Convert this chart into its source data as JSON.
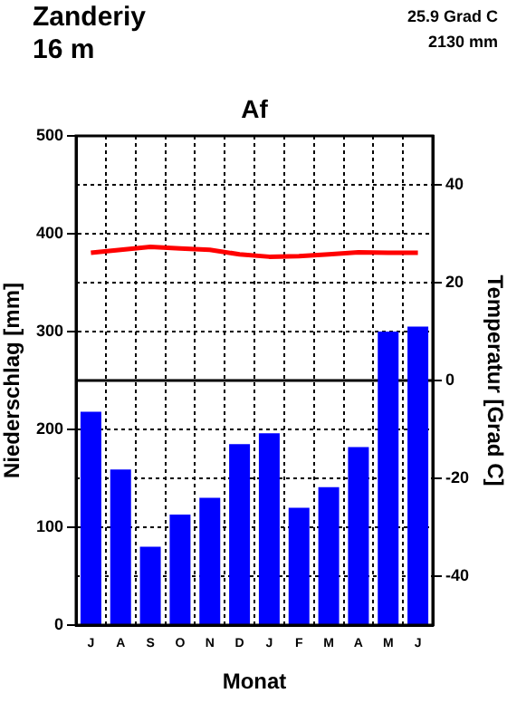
{
  "chart_data": {
    "type": "bar",
    "title": "Af",
    "annotations": [
      "Zanderiy",
      "16 m",
      "25.9 Grad C",
      "2130 mm"
    ],
    "xlabel": "Monat",
    "ylabel": "Niederschlag [mm]",
    "y2label": "Temperatur [Grad C]",
    "categories": [
      "J",
      "A",
      "S",
      "O",
      "N",
      "D",
      "J",
      "F",
      "M",
      "A",
      "M",
      "J"
    ],
    "series": [
      {
        "color": "#0000ff",
        "values": [
          218,
          159,
          80,
          113,
          130,
          185,
          196,
          120,
          141,
          182,
          300,
          305
        ]
      },
      {
        "type": "line",
        "axis": "y2",
        "color": "#ff0000",
        "values": [
          26.1,
          26.7,
          27.3,
          27.0,
          26.7,
          25.8,
          25.3,
          25.4,
          25.8,
          26.2,
          26.1,
          26.1
        ]
      }
    ],
    "ylim": [
      0,
      500
    ],
    "yticks": [
      0,
      100,
      200,
      300,
      400,
      500
    ],
    "y2lim": [
      -50,
      50
    ],
    "y2ticks": [
      -40,
      -20,
      0,
      20,
      40
    ],
    "ref_lines": [
      {
        "axis": "y2",
        "value": 0,
        "color": "#000000"
      }
    ],
    "grid": true,
    "legend": false,
    "marker": "none",
    "line_style": "solid"
  }
}
